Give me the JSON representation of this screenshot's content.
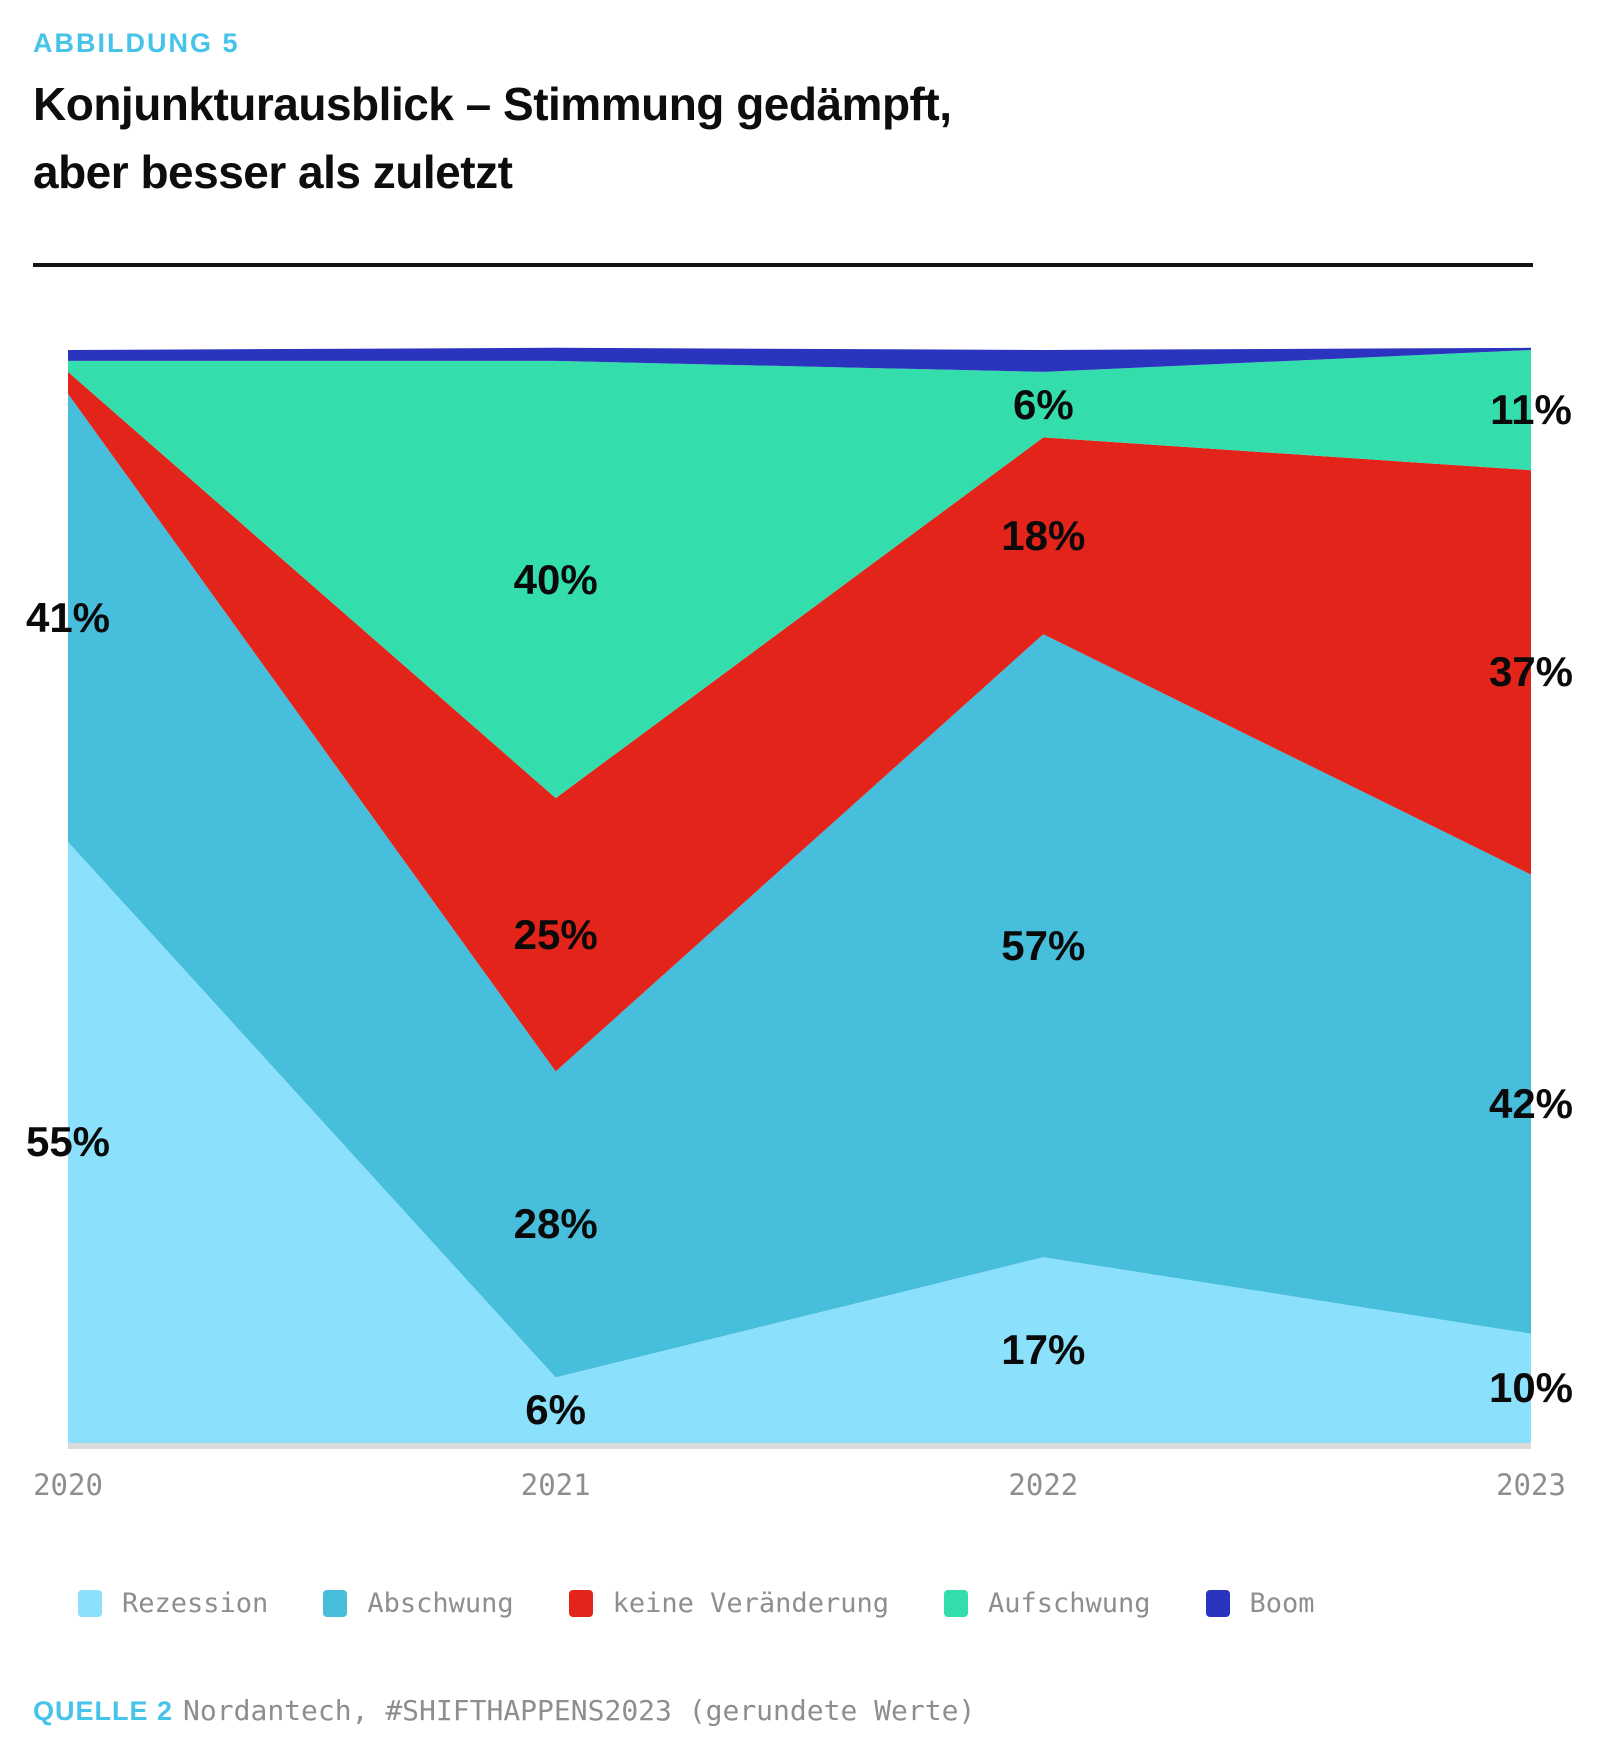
{
  "figure": {
    "tag": "ABBILDUNG 5",
    "title_line1": "Konjunkturausblick – Stimmung gedämpft,",
    "title_line2": "aber besser als zuletzt"
  },
  "source": {
    "label": "QUELLE 2",
    "text": "Nordantech, #SHIFTHAPPENS2023 (gerundete Werte)"
  },
  "colors": {
    "accent": "#45C3E8",
    "title_text": "#0D0D0D",
    "axis_text": "#8E8E8E",
    "divider": "#141414",
    "baseline_shadow": "#DBDBDB"
  },
  "chart_data": {
    "type": "area",
    "stacked": true,
    "unit": "%",
    "title": "Konjunkturausblick – Stimmung gedämpft, aber besser als zuletzt",
    "categories": [
      "2020",
      "2021",
      "2022",
      "2023"
    ],
    "series": [
      {
        "name": "Rezession",
        "color": "#8BE1FB",
        "values": [
          55,
          6,
          17,
          10
        ],
        "labels": [
          "55%",
          "6%",
          "17%",
          "10%"
        ]
      },
      {
        "name": "Abschwung",
        "color": "#46BEDC",
        "values": [
          41,
          28,
          57,
          42
        ],
        "labels": [
          "41%",
          "28%",
          "57%",
          "42%"
        ]
      },
      {
        "name": "keine Veränderung",
        "color": "#E2241A",
        "values": [
          2,
          25,
          18,
          37
        ],
        "labels": [
          null,
          "25%",
          "18%",
          "37%"
        ]
      },
      {
        "name": "Aufschwung",
        "color": "#34DEAC",
        "values": [
          1,
          40,
          6,
          11
        ],
        "labels": [
          null,
          "40%",
          "6%",
          "11%"
        ]
      },
      {
        "name": "Boom",
        "color": "#2B34BE",
        "values": [
          1,
          1.2,
          2,
          0.2
        ],
        "labels": [
          null,
          null,
          null,
          null
        ]
      }
    ],
    "ylim": [
      0,
      100
    ],
    "grid": false,
    "legend_position": "bottom"
  }
}
